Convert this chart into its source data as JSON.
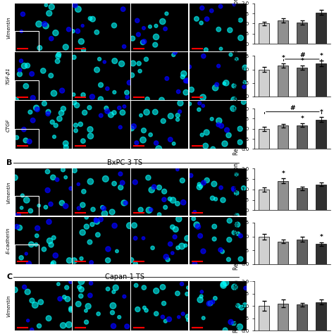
{
  "section_A": {
    "bar_charts": [
      {
        "label": "Vimentin",
        "ylim": [
          0,
          2.0
        ],
        "yticks": [
          0.0,
          0.5,
          1.0,
          1.5,
          2.0
        ],
        "ylabel": "Relative expression",
        "values": [
          1.0,
          1.15,
          1.05,
          1.55
        ],
        "errors": [
          0.08,
          0.1,
          0.09,
          0.12
        ],
        "colors": [
          "#d0d0d0",
          "#909090",
          "#606060",
          "#303030"
        ],
        "has_bracket": false,
        "stars": [
          "",
          "",
          "",
          ""
        ],
        "partial": true
      },
      {
        "label": "TGF-β1",
        "ylim": [
          0,
          1.5
        ],
        "yticks": [
          0.0,
          0.5,
          1.0,
          1.5
        ],
        "ylabel": "Relative expression",
        "values": [
          1.0,
          1.15,
          1.07,
          1.22
        ],
        "errors": [
          0.09,
          0.08,
          0.07,
          0.1
        ],
        "colors": [
          "#d0d0d0",
          "#909090",
          "#606060",
          "#303030"
        ],
        "has_bracket": true,
        "bracket_from": 1,
        "bracket_to": 3,
        "bracket_label": "#",
        "stars": [
          "",
          "*",
          "*",
          "*"
        ],
        "partial": false
      },
      {
        "label": "CTGF",
        "ylim": [
          0,
          2.0
        ],
        "yticks": [
          0.0,
          0.5,
          1.0,
          1.5,
          2.0
        ],
        "ylabel": "Relative expression",
        "values": [
          1.0,
          1.15,
          1.18,
          1.45
        ],
        "errors": [
          0.1,
          0.09,
          0.08,
          0.12
        ],
        "colors": [
          "#d0d0d0",
          "#909090",
          "#606060",
          "#303030"
        ],
        "has_bracket": true,
        "bracket_from": 0,
        "bracket_to": 3,
        "bracket_label": "#",
        "stars": [
          "",
          "",
          "*",
          "*"
        ],
        "partial": false
      }
    ],
    "x_conditions": [
      [
        "-",
        "+",
        "-",
        "+"
      ],
      [
        "-",
        "-",
        "+",
        "+"
      ]
    ]
  },
  "section_B": {
    "title": "BxPC-3 TS",
    "bar_charts": [
      {
        "label": "Vimentin",
        "ylim": [
          0,
          2.0
        ],
        "yticks": [
          0.0,
          0.5,
          1.0,
          1.5,
          2.0
        ],
        "ylabel": "Relative expression",
        "values": [
          1.0,
          1.42,
          1.05,
          1.25
        ],
        "errors": [
          0.1,
          0.12,
          0.08,
          0.09
        ],
        "colors": [
          "#d0d0d0",
          "#909090",
          "#606060",
          "#303030"
        ],
        "has_bracket": false,
        "stars": [
          "",
          "*",
          "",
          ""
        ],
        "partial": false
      },
      {
        "label": "E-cadherin",
        "ylim": [
          0,
          1.5
        ],
        "yticks": [
          0.0,
          0.5,
          1.0,
          1.5
        ],
        "ylabel": "Relative expression",
        "values": [
          1.0,
          0.82,
          0.9,
          0.73
        ],
        "errors": [
          0.1,
          0.07,
          0.1,
          0.06
        ],
        "colors": [
          "#d0d0d0",
          "#909090",
          "#606060",
          "#303030"
        ],
        "has_bracket": false,
        "stars": [
          "",
          "",
          "",
          "*"
        ],
        "partial": false
      }
    ],
    "x_conditions": [
      [
        "-",
        "+",
        "-",
        "+"
      ],
      [
        "-",
        "-",
        "+",
        "+"
      ]
    ]
  },
  "section_C": {
    "title": "Capan-1 TS",
    "bar_charts": [
      {
        "label": "Vimentin",
        "ylim": [
          0,
          2.0
        ],
        "yticks": [
          0.0,
          0.5,
          1.0,
          1.5,
          2.0
        ],
        "ylabel": "Relative expression",
        "values": [
          1.0,
          1.1,
          1.05,
          1.15
        ],
        "errors": [
          0.2,
          0.15,
          0.08,
          0.1
        ],
        "colors": [
          "#d0d0d0",
          "#909090",
          "#606060",
          "#303030"
        ],
        "has_bracket": false,
        "stars": [
          "",
          "",
          "",
          ""
        ],
        "partial": true
      }
    ],
    "x_conditions": [
      [
        "-",
        "+",
        "-",
        "+"
      ],
      [
        "-",
        "-",
        "+",
        "+"
      ]
    ]
  },
  "bg_color": "#ffffff",
  "bar_width": 0.55,
  "fontsize_ylabel": 5.5,
  "fontsize_tick": 5.0,
  "fontsize_star": 6.5,
  "fontsize_bracket": 6.5,
  "fontsize_section": 8.0,
  "fontsize_title": 7.0,
  "fontsize_xlab": 5.0
}
